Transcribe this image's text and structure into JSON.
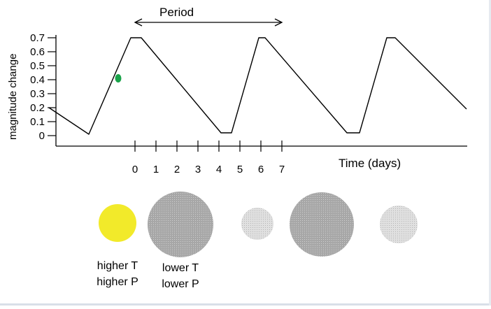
{
  "chart_data": {
    "type": "line",
    "ylabel": "magnitude change",
    "xlabel": "Time (days)",
    "y_ticks": [
      "0",
      "0.1",
      "0.2",
      "0.3",
      "0.4",
      "0.5",
      "0.6",
      "0.7"
    ],
    "x_ticks": [
      "0",
      "1",
      "2",
      "3",
      "4",
      "5",
      "6",
      "7"
    ],
    "ylim": [
      0,
      0.7
    ],
    "period_label": "Period",
    "period_days": 7,
    "series": [
      {
        "x": [
          -4.1,
          -2.2,
          -0.2,
          0.3,
          4.1,
          4.6,
          5.9,
          6.2,
          10.1,
          10.7,
          12.0,
          12.4,
          15.8
        ],
        "y": [
          0.2,
          0.01,
          0.7,
          0.7,
          0.02,
          0.02,
          0.7,
          0.7,
          0.02,
          0.02,
          0.7,
          0.7,
          0.19
        ],
        "color": "#000000"
      }
    ],
    "marker": {
      "x": -0.8,
      "y": 0.41,
      "color": "#1aa34a"
    }
  },
  "star_states": [
    {
      "style": "yellow",
      "color": "#f2ea2a",
      "label_lines": [
        "higher T",
        "higher P"
      ]
    },
    {
      "style": "gray",
      "color": "#a7a7a7",
      "label_lines": [
        "lower T",
        "lower P"
      ]
    },
    {
      "style": "light-gray",
      "color": "#d2d2d2",
      "label_lines": []
    },
    {
      "style": "gray",
      "color": "#a7a7a7",
      "label_lines": []
    },
    {
      "style": "light-gray",
      "color": "#d2d2d2",
      "label_lines": []
    }
  ]
}
